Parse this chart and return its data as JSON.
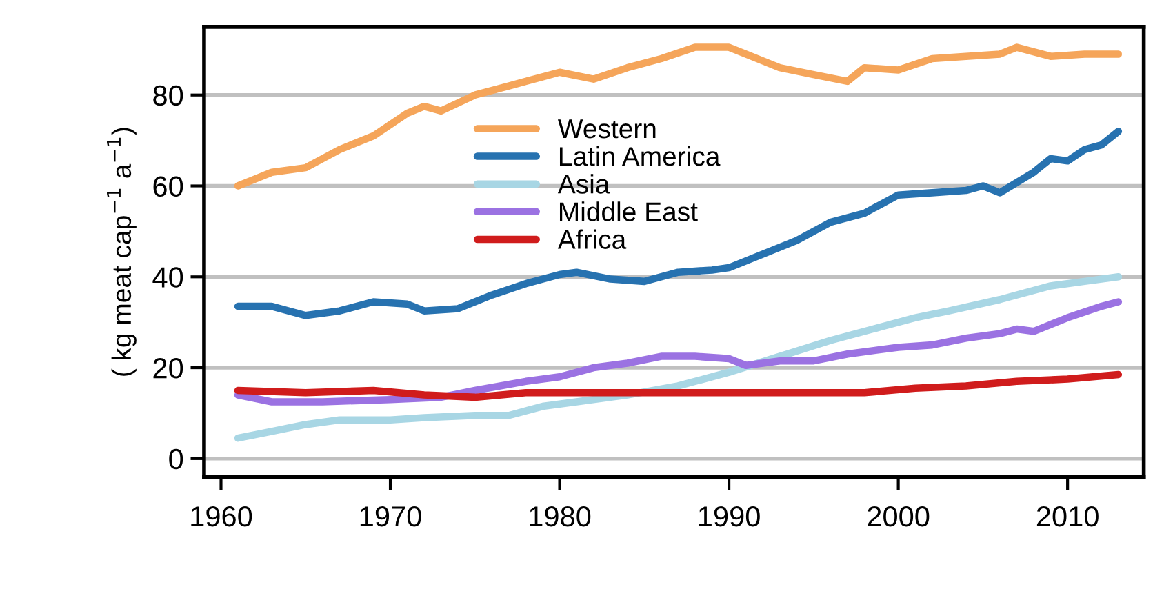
{
  "chart_data": {
    "type": "line",
    "ylabel": "( kg meat cap$^{−1}$ a$^{−1}$)",
    "xlim": [
      1959,
      2014.5
    ],
    "ylim": [
      -4,
      95
    ],
    "xticks": [
      1960,
      1970,
      1980,
      1990,
      2000,
      2010
    ],
    "yticks": [
      0,
      20,
      40,
      60,
      80
    ],
    "grid": "y",
    "legend": "top",
    "line_style": "solid",
    "marker": "none",
    "series": [
      {
        "name": "Western",
        "color": "#f5a55a",
        "x": [
          1961,
          1963,
          1965,
          1967,
          1969,
          1971,
          1972,
          1973,
          1975,
          1977,
          1979,
          1980,
          1982,
          1984,
          1986,
          1988,
          1990,
          1991,
          1993,
          1995,
          1997,
          1998,
          2000,
          2002,
          2004,
          2006,
          2007,
          2009,
          2011,
          2013
        ],
        "values": [
          60,
          63,
          64,
          68,
          71,
          76,
          77.5,
          76.5,
          80,
          82,
          84,
          85,
          83.5,
          86,
          88,
          90.5,
          90.5,
          89,
          86,
          84.5,
          83,
          86,
          85.5,
          88,
          88.5,
          89,
          90.5,
          88.5,
          89,
          89
        ]
      },
      {
        "name": "Latin America",
        "color": "#2772b0",
        "x": [
          1961,
          1963,
          1965,
          1967,
          1969,
          1971,
          1972,
          1974,
          1976,
          1978,
          1980,
          1981,
          1983,
          1985,
          1987,
          1989,
          1990,
          1992,
          1994,
          1996,
          1998,
          2000,
          2002,
          2004,
          2005,
          2006,
          2008,
          2009,
          2010,
          2011,
          2012,
          2013
        ],
        "values": [
          33.5,
          33.5,
          31.5,
          32.5,
          34.5,
          34,
          32.5,
          33,
          36,
          38.5,
          40.5,
          41,
          39.5,
          39,
          41,
          41.5,
          42,
          45,
          48,
          52,
          54,
          58,
          58.5,
          59,
          60,
          58.5,
          63,
          66,
          65.5,
          68,
          69,
          72
        ]
      },
      {
        "name": "Asia",
        "color": "#a8d6e4",
        "x": [
          1961,
          1963,
          1965,
          1967,
          1970,
          1972,
          1975,
          1977,
          1979,
          1981,
          1984,
          1987,
          1990,
          1993,
          1996,
          1999,
          2001,
          2003,
          2006,
          2009,
          2011,
          2013
        ],
        "values": [
          4.5,
          6,
          7.5,
          8.5,
          8.5,
          9,
          9.5,
          9.5,
          11.5,
          12.5,
          14,
          16,
          19,
          22.5,
          26,
          29,
          31,
          32.5,
          35,
          38,
          39,
          40
        ]
      },
      {
        "name": "Middle East",
        "color": "#9b72e2",
        "x": [
          1961,
          1963,
          1966,
          1970,
          1973,
          1975,
          1978,
          1980,
          1982,
          1984,
          1986,
          1988,
          1990,
          1991,
          1993,
          1995,
          1997,
          2000,
          2002,
          2004,
          2006,
          2007,
          2008,
          2010,
          2012,
          2013
        ],
        "values": [
          14,
          12.5,
          12.5,
          13,
          13.5,
          15,
          17,
          18,
          20,
          21,
          22.5,
          22.5,
          22,
          20.5,
          21.5,
          21.5,
          23,
          24.5,
          25,
          26.5,
          27.5,
          28.5,
          28,
          31,
          33.5,
          34.5
        ]
      },
      {
        "name": "Africa",
        "color": "#d01c1c",
        "x": [
          1961,
          1965,
          1969,
          1972,
          1975,
          1978,
          1982,
          1986,
          1990,
          1994,
          1998,
          2001,
          2004,
          2007,
          2010,
          2013
        ],
        "values": [
          15,
          14.5,
          15,
          14,
          13.5,
          14.5,
          14.5,
          14.5,
          14.5,
          14.5,
          14.5,
          15.5,
          16,
          17,
          17.5,
          18.5
        ]
      }
    ]
  }
}
